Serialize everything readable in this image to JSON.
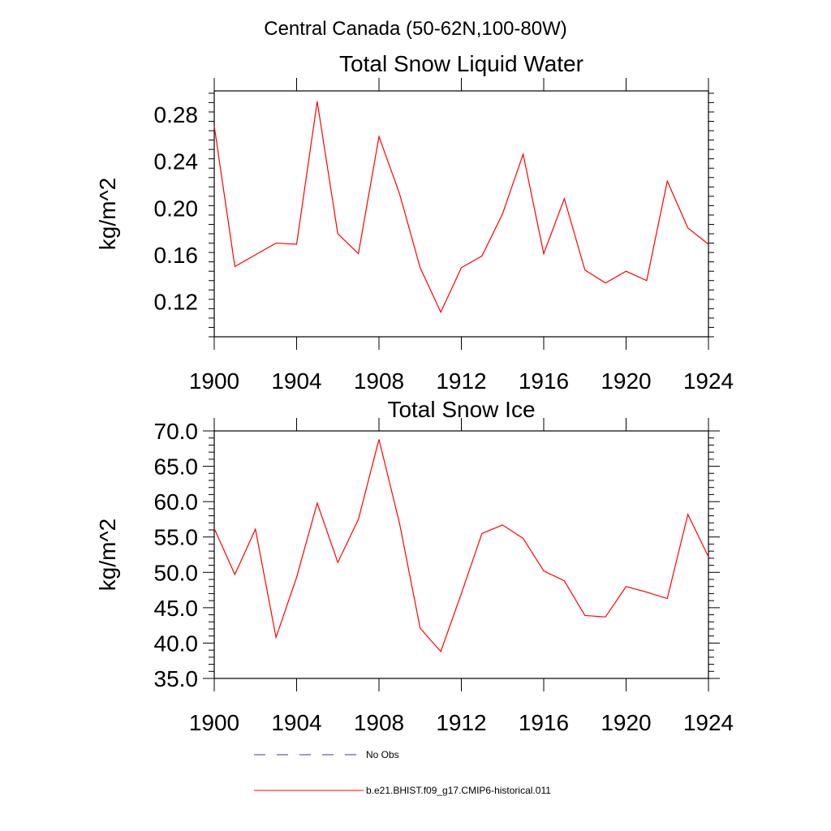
{
  "figure_title": "Central Canada (50-62N,100-80W)",
  "legend": {
    "entries": [
      {
        "label": "No Obs",
        "color": "#3b3b8f",
        "dash": "dashed"
      },
      {
        "label": "b.e21.BHIST.f09_g17.CMIP6-historical.011",
        "color": "#ff0000",
        "dash": "solid"
      }
    ]
  },
  "chart_data": [
    {
      "type": "line",
      "title": "Total Snow Liquid Water",
      "xlabel": "",
      "ylabel": "kg/m^2",
      "xlim": [
        1900,
        1924
      ],
      "ylim": [
        0.09,
        0.3
      ],
      "xticks": [
        1900,
        1904,
        1908,
        1912,
        1916,
        1920,
        1924
      ],
      "yticks": [
        0.12,
        0.16,
        0.2,
        0.24,
        0.28
      ],
      "ytick_labels": [
        "0.12",
        "0.16",
        "0.20",
        "0.24",
        "0.28"
      ],
      "grid": false,
      "x": [
        1900,
        1901,
        1902,
        1903,
        1904,
        1905,
        1906,
        1907,
        1908,
        1909,
        1910,
        1911,
        1912,
        1913,
        1914,
        1915,
        1916,
        1917,
        1918,
        1919,
        1920,
        1921,
        1922,
        1923,
        1924
      ],
      "series": [
        {
          "color": "#ff0000",
          "values": [
            0.27,
            0.15,
            0.16,
            0.17,
            0.169,
            0.291,
            0.178,
            0.161,
            0.261,
            0.212,
            0.149,
            0.111,
            0.149,
            0.159,
            0.195,
            0.246,
            0.161,
            0.208,
            0.147,
            0.136,
            0.146,
            0.138,
            0.223,
            0.183,
            0.169
          ]
        }
      ]
    },
    {
      "type": "line",
      "title": "Total Snow Ice",
      "xlabel": "",
      "ylabel": "kg/m^2",
      "xlim": [
        1900,
        1924
      ],
      "ylim": [
        35.0,
        70.0
      ],
      "xticks": [
        1900,
        1904,
        1908,
        1912,
        1916,
        1920,
        1924
      ],
      "yticks": [
        35.0,
        40.0,
        45.0,
        50.0,
        55.0,
        60.0,
        65.0,
        70.0
      ],
      "ytick_labels": [
        "35.0",
        "40.0",
        "45.0",
        "50.0",
        "55.0",
        "60.0",
        "65.0",
        "70.0"
      ],
      "grid": false,
      "x": [
        1900,
        1901,
        1902,
        1903,
        1904,
        1905,
        1906,
        1907,
        1908,
        1909,
        1910,
        1911,
        1912,
        1913,
        1914,
        1915,
        1916,
        1917,
        1918,
        1919,
        1920,
        1921,
        1922,
        1923,
        1924
      ],
      "series": [
        {
          "color": "#ff0000",
          "values": [
            56.2,
            49.7,
            56.1,
            40.8,
            49.3,
            59.8,
            51.4,
            57.5,
            68.8,
            56.9,
            42.1,
            38.8,
            47.0,
            55.5,
            56.7,
            54.8,
            50.2,
            48.8,
            43.9,
            43.7,
            48.0,
            47.2,
            46.3,
            58.2,
            52.2
          ]
        }
      ]
    }
  ]
}
